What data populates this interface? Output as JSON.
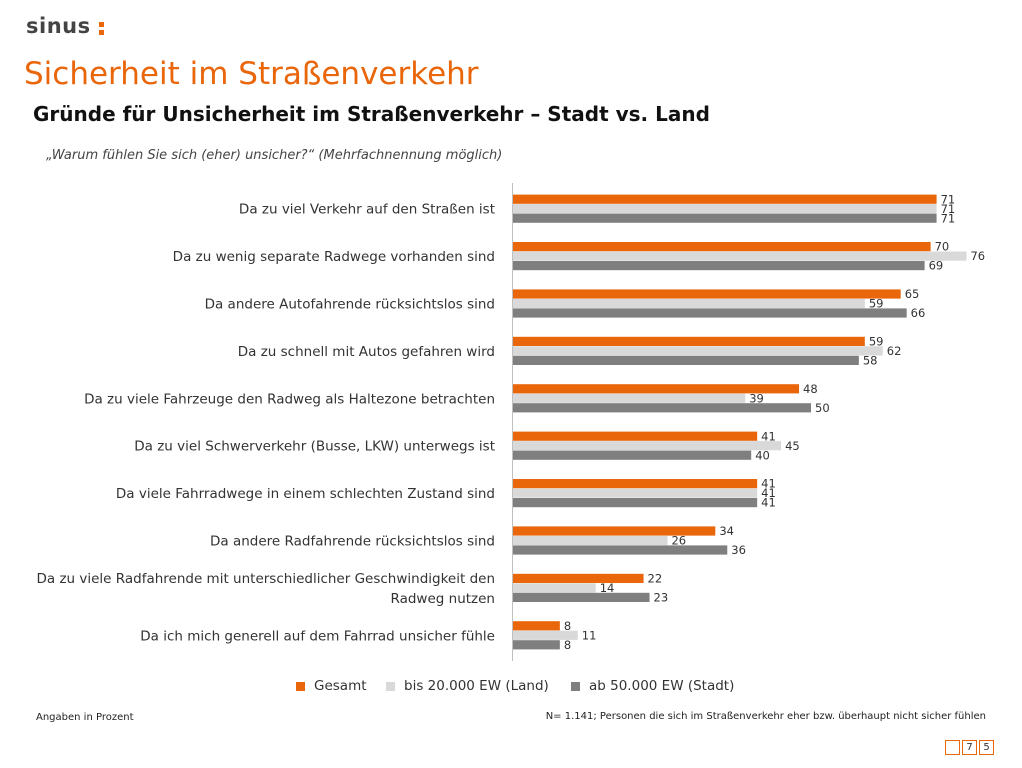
{
  "header": {
    "logo_text": "sinus",
    "title": "Sicherheit im Straßenverkehr",
    "subtitle": "Gründe für Unsicherheit im Straßenverkehr – Stadt vs. Land",
    "question": "„Warum fühlen Sie sich (eher) unsicher?“ (Mehrfachnennung möglich)"
  },
  "colors": {
    "accent": "#E9660B",
    "land": "#D9D9D9",
    "stadt": "#7F7F7F"
  },
  "chart_data": {
    "type": "bar",
    "orientation": "horizontal",
    "categories": [
      "Da zu viel Verkehr auf den Straßen ist",
      "Da zu wenig separate Radwege vorhanden sind",
      "Da andere Autofahrende rücksichtslos sind",
      "Da zu schnell mit Autos gefahren wird",
      "Da zu viele Fahrzeuge den Radweg als Haltezone betrachten",
      "Da zu viel Schwerverkehr (Busse, LKW) unterwegs ist",
      "Da viele Fahrradwege in einem schlechten Zustand sind",
      "Da andere Radfahrende rücksichtslos sind",
      "Da zu viele Radfahrende mit unterschiedlicher Geschwindigkeit den Radweg nutzen",
      "Da ich mich generell auf dem Fahrrad unsicher fühle"
    ],
    "category_lines": [
      [
        "Da zu viel Verkehr auf den Straßen ist"
      ],
      [
        "Da zu wenig separate Radwege vorhanden sind"
      ],
      [
        "Da andere Autofahrende rücksichtslos sind"
      ],
      [
        "Da zu schnell mit Autos gefahren wird"
      ],
      [
        "Da zu viele Fahrzeuge den Radweg als Haltezone betrachten"
      ],
      [
        "Da zu viel Schwerverkehr (Busse, LKW) unterwegs ist"
      ],
      [
        "Da viele Fahrradwege in einem schlechten Zustand sind"
      ],
      [
        "Da andere Radfahrende rücksichtslos sind"
      ],
      [
        "Da zu viele Radfahrende mit unterschiedlicher Geschwindigkeit den",
        "Radweg nutzen"
      ],
      [
        "Da ich mich generell auf dem Fahrrad unsicher fühle"
      ]
    ],
    "series": [
      {
        "name": "Gesamt",
        "color": "#E9660B",
        "values": [
          71,
          70,
          65,
          59,
          48,
          41,
          41,
          34,
          22,
          8
        ]
      },
      {
        "name": "bis 20.000 EW (Land)",
        "color": "#D9D9D9",
        "values": [
          71,
          76,
          59,
          62,
          39,
          45,
          41,
          26,
          14,
          11
        ]
      },
      {
        "name": "ab 50.000 EW (Stadt)",
        "color": "#7F7F7F",
        "values": [
          71,
          69,
          66,
          58,
          50,
          40,
          41,
          36,
          23,
          8
        ]
      }
    ],
    "xlim": [
      0,
      80
    ],
    "grid": false,
    "legend_position": "bottom"
  },
  "footer": {
    "note_left": "Angaben in Prozent",
    "note_right": "N= 1.141; Personen die sich im Straßenverkehr eher bzw. überhaupt nicht sicher fühlen",
    "page_digits": [
      "",
      "7",
      "5"
    ]
  }
}
